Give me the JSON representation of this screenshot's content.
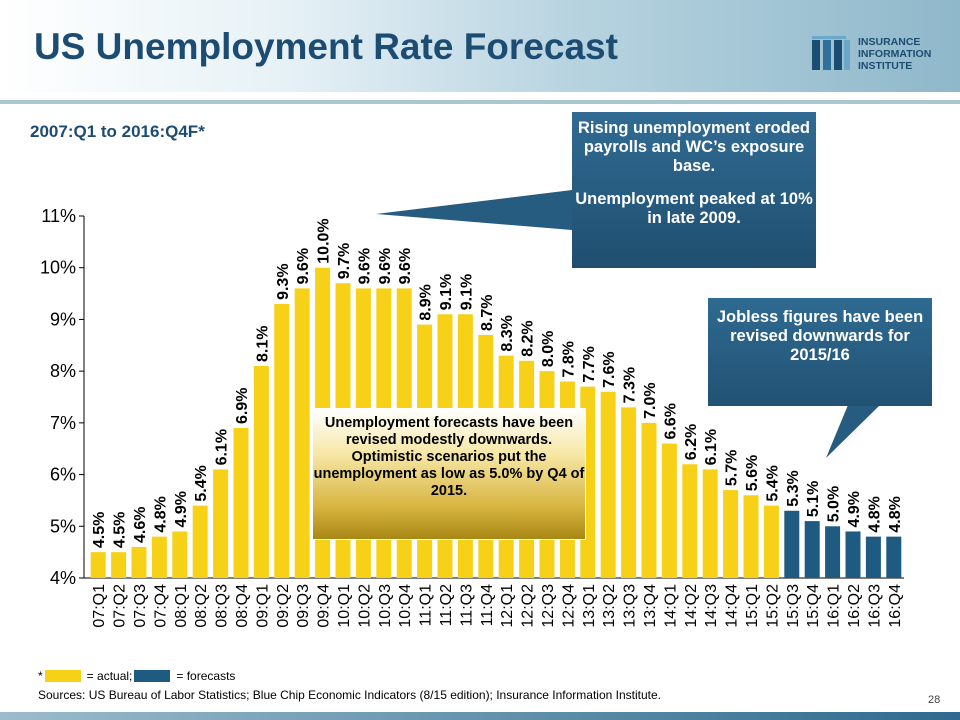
{
  "header": {
    "title": "US Unemployment Rate Forecast",
    "logo_lines": [
      "INSURANCE",
      "INFORMATION",
      "INSTITUTE"
    ]
  },
  "subtitle": "2007:Q1 to 2016:Q4F*",
  "callouts": {
    "rising_p1": "Rising unemployment eroded payrolls and WC’s exposure base.",
    "rising_p2": "Unemployment peaked at 10% in late 2009.",
    "jobless": "Jobless figures have been revised downwards for 2015/16",
    "forecast_note": "Unemployment forecasts have been revised modestly downwards. Optimistic scenarios put the unemployment as low as 5.0% by Q4 of 2015."
  },
  "legend": {
    "prefix": "*",
    "actual_label": "= actual;",
    "forecast_label": "= forecasts"
  },
  "sources": "Sources: US Bureau of Labor Statistics; Blue Chip Economic Indicators (8/15 edition);  Insurance Information Institute.",
  "page_number": "28",
  "colors": {
    "actual": "#f6d117",
    "forecast": "#1f5a80",
    "title": "#1d4c72"
  },
  "chart_data": {
    "type": "bar",
    "ylim": [
      4,
      11
    ],
    "yticks": [
      4,
      5,
      6,
      7,
      8,
      9,
      10,
      11
    ],
    "ytick_labels": [
      "4%",
      "5%",
      "6%",
      "7%",
      "8%",
      "9%",
      "10%",
      "11%"
    ],
    "categories": [
      "07:Q1",
      "07:Q2",
      "07:Q3",
      "07:Q4",
      "08:Q1",
      "08:Q2",
      "08:Q3",
      "08:Q4",
      "09:Q1",
      "09:Q2",
      "09:Q3",
      "09:Q4",
      "10:Q1",
      "10:Q2",
      "10:Q3",
      "10:Q4",
      "11:Q1",
      "11:Q2",
      "11:Q3",
      "11:Q4",
      "12:Q1",
      "12:Q2",
      "12:Q3",
      "12:Q4",
      "13:Q1",
      "13:Q2",
      "13:Q3",
      "13:Q4",
      "14:Q1",
      "14:Q2",
      "14:Q3",
      "14:Q4",
      "15:Q1",
      "15:Q2",
      "15:Q3",
      "15:Q4",
      "16:Q1",
      "16:Q2",
      "16:Q3",
      "16:Q4"
    ],
    "values": [
      4.5,
      4.5,
      4.6,
      4.8,
      4.9,
      5.4,
      6.1,
      6.9,
      8.1,
      9.3,
      9.6,
      10.0,
      9.7,
      9.6,
      9.6,
      9.6,
      8.9,
      9.1,
      9.1,
      8.7,
      8.3,
      8.2,
      8.0,
      7.8,
      7.7,
      7.6,
      7.3,
      7.0,
      6.6,
      6.2,
      6.1,
      5.7,
      5.6,
      5.4,
      5.3,
      5.1,
      5.0,
      4.9,
      4.8,
      4.8
    ],
    "labels": [
      "4.5%",
      "4.5%",
      "4.6%",
      "4.8%",
      "4.9%",
      "5.4%",
      "6.1%",
      "6.9%",
      "8.1%",
      "9.3%",
      "9.6%",
      "10.0%",
      "9.7%",
      "9.6%",
      "9.6%",
      "9.6%",
      "8.9%",
      "9.1%",
      "9.1%",
      "8.7%",
      "8.3%",
      "8.2%",
      "8.0%",
      "7.8%",
      "7.7%",
      "7.6%",
      "7.3%",
      "7.0%",
      "6.6%",
      "6.2%",
      "6.1%",
      "5.7%",
      "5.6%",
      "5.4%",
      "5.3%",
      "5.1%",
      "5.0%",
      "4.9%",
      "4.8%",
      "4.8%"
    ],
    "status": [
      "actual",
      "actual",
      "actual",
      "actual",
      "actual",
      "actual",
      "actual",
      "actual",
      "actual",
      "actual",
      "actual",
      "actual",
      "actual",
      "actual",
      "actual",
      "actual",
      "actual",
      "actual",
      "actual",
      "actual",
      "actual",
      "actual",
      "actual",
      "actual",
      "actual",
      "actual",
      "actual",
      "actual",
      "actual",
      "actual",
      "actual",
      "actual",
      "actual",
      "actual",
      "forecast",
      "forecast",
      "forecast",
      "forecast",
      "forecast",
      "forecast"
    ],
    "grid": false,
    "legend": "bottom-left"
  }
}
